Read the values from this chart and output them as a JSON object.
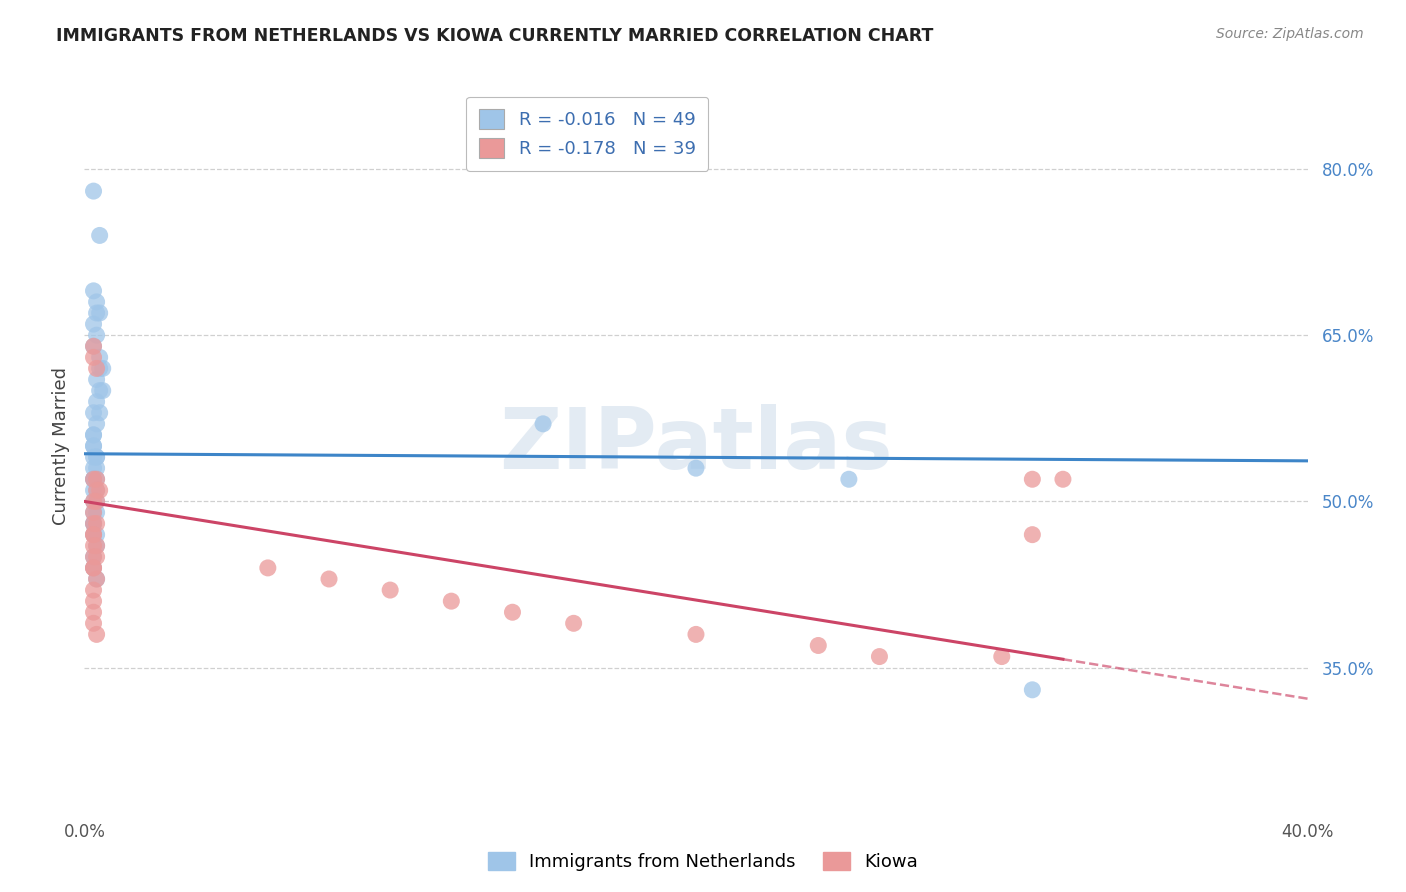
{
  "title": "IMMIGRANTS FROM NETHERLANDS VS KIOWA CURRENTLY MARRIED CORRELATION CHART",
  "source": "Source: ZipAtlas.com",
  "ylabel": "Currently Married",
  "ytick_labels": [
    "80.0%",
    "65.0%",
    "50.0%",
    "35.0%"
  ],
  "ytick_values": [
    0.8,
    0.65,
    0.5,
    0.35
  ],
  "xlim": [
    0.0,
    0.4
  ],
  "ylim": [
    0.22,
    0.88
  ],
  "blue_color": "#9fc5e8",
  "pink_color": "#ea9999",
  "blue_line_color": "#3d85c8",
  "pink_line_color": "#cc4466",
  "legend_r_blue": "R = -0.016",
  "legend_n_blue": "N = 49",
  "legend_r_pink": "R = -0.178",
  "legend_n_pink": "N = 39",
  "blue_intercept": 0.543,
  "blue_slope": -0.016,
  "pink_intercept": 0.5,
  "pink_slope": -0.445,
  "blue_x": [
    0.003,
    0.005,
    0.003,
    0.004,
    0.004,
    0.005,
    0.003,
    0.004,
    0.003,
    0.005,
    0.006,
    0.005,
    0.004,
    0.005,
    0.006,
    0.004,
    0.003,
    0.005,
    0.004,
    0.003,
    0.003,
    0.003,
    0.003,
    0.004,
    0.003,
    0.004,
    0.003,
    0.004,
    0.004,
    0.003,
    0.003,
    0.004,
    0.003,
    0.003,
    0.004,
    0.004,
    0.003,
    0.003,
    0.003,
    0.003,
    0.004,
    0.004,
    0.003,
    0.003,
    0.004,
    0.15,
    0.2,
    0.31,
    0.25
  ],
  "blue_y": [
    0.78,
    0.74,
    0.69,
    0.68,
    0.67,
    0.67,
    0.66,
    0.65,
    0.64,
    0.63,
    0.62,
    0.62,
    0.61,
    0.6,
    0.6,
    0.59,
    0.58,
    0.58,
    0.57,
    0.56,
    0.56,
    0.55,
    0.55,
    0.54,
    0.54,
    0.54,
    0.53,
    0.53,
    0.52,
    0.52,
    0.52,
    0.51,
    0.51,
    0.5,
    0.5,
    0.49,
    0.49,
    0.48,
    0.48,
    0.47,
    0.47,
    0.46,
    0.45,
    0.44,
    0.43,
    0.57,
    0.53,
    0.33,
    0.52
  ],
  "pink_x": [
    0.003,
    0.003,
    0.004,
    0.003,
    0.004,
    0.005,
    0.004,
    0.003,
    0.004,
    0.003,
    0.003,
    0.004,
    0.003,
    0.003,
    0.004,
    0.003,
    0.003,
    0.004,
    0.003,
    0.003,
    0.004,
    0.003,
    0.003,
    0.003,
    0.003,
    0.004,
    0.06,
    0.08,
    0.1,
    0.12,
    0.14,
    0.16,
    0.2,
    0.24,
    0.26,
    0.3,
    0.31,
    0.31,
    0.32
  ],
  "pink_y": [
    0.64,
    0.63,
    0.62,
    0.52,
    0.52,
    0.51,
    0.51,
    0.5,
    0.5,
    0.49,
    0.48,
    0.48,
    0.47,
    0.47,
    0.46,
    0.46,
    0.45,
    0.45,
    0.44,
    0.44,
    0.43,
    0.42,
    0.41,
    0.4,
    0.39,
    0.38,
    0.44,
    0.43,
    0.42,
    0.41,
    0.4,
    0.39,
    0.38,
    0.37,
    0.36,
    0.36,
    0.52,
    0.47,
    0.52
  ],
  "watermark": "ZIPatlas",
  "background_color": "#ffffff",
  "grid_color": "#d0d0d0"
}
